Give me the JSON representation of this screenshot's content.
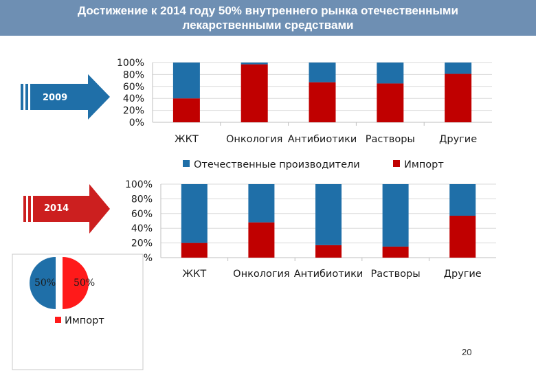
{
  "title": {
    "line1": "Достижение к 2014 году 50% внутреннего рынка отечественными",
    "line2": "лекарственными средствами"
  },
  "arrows": [
    {
      "label": "2009",
      "color": "#1f6fa8"
    },
    {
      "label": "2014",
      "color": "#cc1f1f"
    }
  ],
  "colors": {
    "domestic": "#1f6fa8",
    "import": "#c00000",
    "pie_domestic": "#1f6fa8",
    "pie_import": "#ff1a1a"
  },
  "chart_data": [
    {
      "type": "bar",
      "stacked": true,
      "categories": [
        "ЖКТ",
        "Онкология",
        "Антибиотики",
        "Растворы",
        "Другие"
      ],
      "series": [
        {
          "name": "Импорт",
          "values": [
            40,
            97,
            67,
            65,
            81
          ]
        },
        {
          "name": "Отечественные производители",
          "values": [
            60,
            3,
            33,
            35,
            19
          ]
        }
      ],
      "ylim": [
        0,
        100
      ],
      "yticks": [
        "0%",
        "20%",
        "40%",
        "60%",
        "80%",
        "100%"
      ],
      "grid": true
    },
    {
      "type": "bar",
      "stacked": true,
      "categories": [
        "ЖКТ",
        "Онкология",
        "Антибиотики",
        "Растворы",
        "Другие"
      ],
      "series": [
        {
          "name": "Импорт",
          "values": [
            20,
            48,
            17,
            15,
            57
          ]
        },
        {
          "name": "Отечественные производители",
          "values": [
            80,
            52,
            83,
            85,
            43
          ]
        }
      ],
      "ylim": [
        0,
        100
      ],
      "yticks": [
        "0%",
        "20%",
        "40%",
        "60%",
        "80%",
        "100%"
      ],
      "grid": true
    },
    {
      "type": "pie",
      "slices": [
        {
          "label": "50%",
          "value": 50
        },
        {
          "label": "50%",
          "value": 50
        }
      ],
      "legend": [
        "Импорт"
      ]
    }
  ],
  "legend": {
    "domestic": "Отечественные производители",
    "import": "Импорт"
  },
  "page_number": "20"
}
